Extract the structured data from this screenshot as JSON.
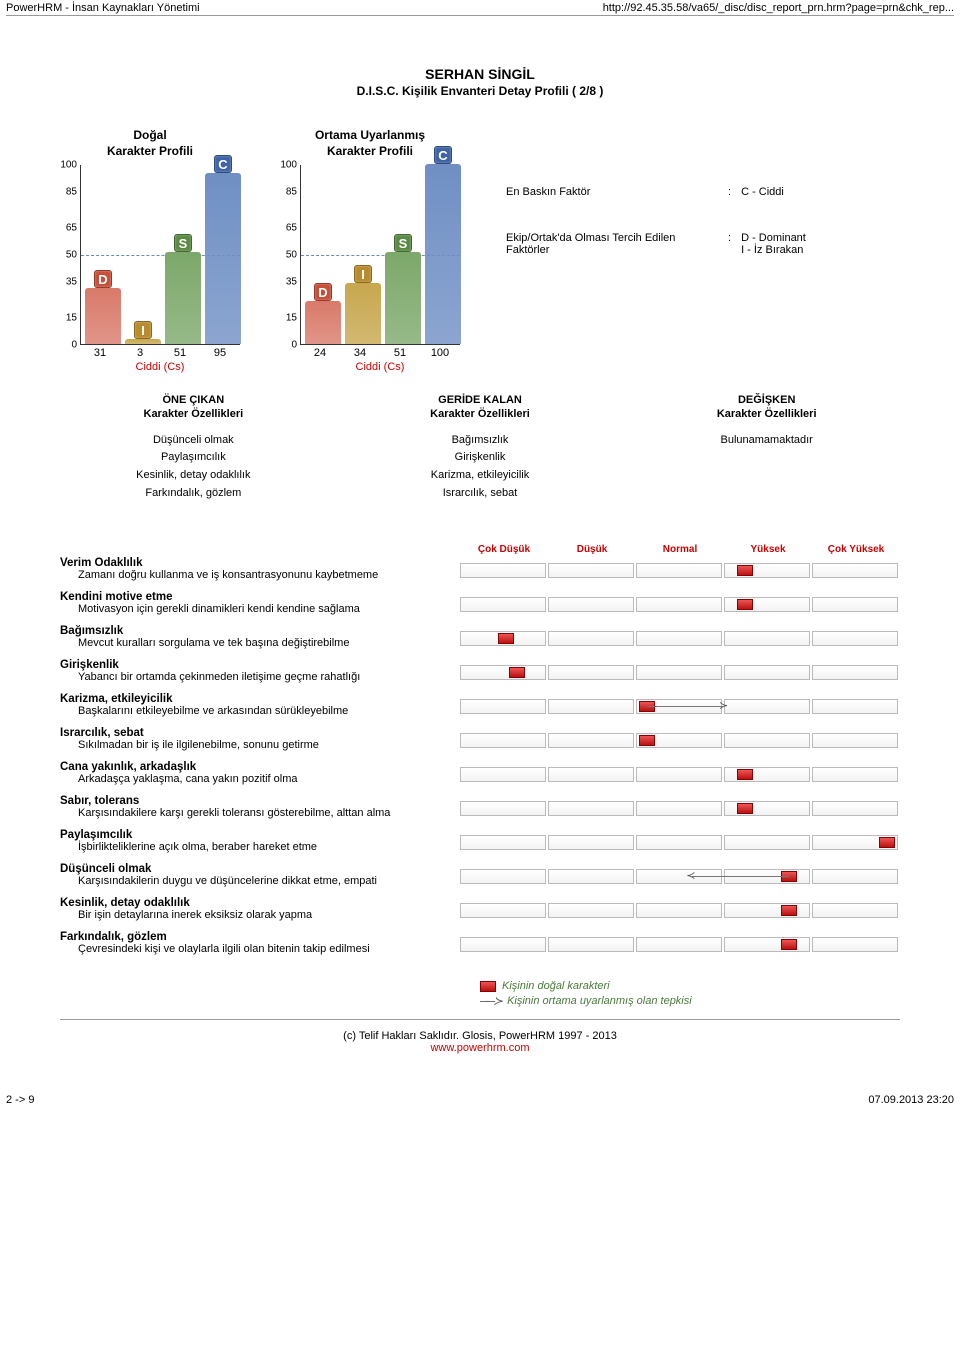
{
  "topbar": {
    "left": "PowerHRM - İnsan Kaynakları Yönetimi",
    "right": "http://92.45.35.58/va65/_disc/disc_report_prn.hrm?page=prn&chk_rep..."
  },
  "title": "SERHAN SİNGİL",
  "subtitle": "D.I.S.C. Kişilik Envanteri Detay Profili ( 2/8 )",
  "profiles": {
    "natural": {
      "heading": "Doğal\nKarakter Profili",
      "yticks": [
        "100",
        "85",
        "65",
        "50",
        "35",
        "15",
        "0"
      ],
      "dashline": 50,
      "bars": [
        {
          "label": "D",
          "value": 31,
          "bar_color": "#d97a6a",
          "label_bg": "#c74f3a"
        },
        {
          "label": "I",
          "value": 3,
          "bar_color": "#c7a74e",
          "label_bg": "#b88b2e"
        },
        {
          "label": "S",
          "value": 51,
          "bar_color": "#7ca86a",
          "label_bg": "#5a8a44"
        },
        {
          "label": "C",
          "value": 95,
          "bar_color": "#6f8fc4",
          "label_bg": "#3f63a4"
        }
      ],
      "values_below": [
        "31",
        "3",
        "51",
        "95"
      ],
      "class": "Ciddi (Cs)"
    },
    "adapted": {
      "heading": "Ortama Uyarlanmış\nKarakter Profili",
      "yticks": [
        "100",
        "85",
        "65",
        "50",
        "35",
        "15",
        "0"
      ],
      "dashline": 50,
      "bars": [
        {
          "label": "D",
          "value": 24,
          "bar_color": "#d97a6a",
          "label_bg": "#c74f3a"
        },
        {
          "label": "I",
          "value": 34,
          "bar_color": "#c7a74e",
          "label_bg": "#b88b2e"
        },
        {
          "label": "S",
          "value": 51,
          "bar_color": "#7ca86a",
          "label_bg": "#5a8a44"
        },
        {
          "label": "C",
          "value": 100,
          "bar_color": "#6f8fc4",
          "label_bg": "#3f63a4"
        }
      ],
      "values_below": [
        "24",
        "34",
        "51",
        "100"
      ],
      "class": "Ciddi (Cs)"
    }
  },
  "factors": {
    "r1_label": "En Baskın Faktör",
    "r1_sep": ":",
    "r1_value": "C - Ciddi",
    "r2_label": "Ekip/Ortak'da Olması Tercih Edilen Faktörler",
    "r2_sep": ":",
    "r2_value": "D - Dominant\nI - İz Bırakan"
  },
  "characteristics": {
    "front": {
      "heading": "ÖNE ÇIKAN\nKarakter Özellikleri",
      "items": [
        "Düşünceli olmak",
        "Paylaşımcılık",
        "Kesinlik, detay odaklılık",
        "Farkındalık, gözlem"
      ]
    },
    "behind": {
      "heading": "GERİDE KALAN\nKarakter Özellikleri",
      "items": [
        "Bağımsızlık",
        "Girişkenlik",
        "Karizma, etkileyicilik",
        "Israrcılık, sebat"
      ]
    },
    "change": {
      "heading": "DEĞİŞKEN\nKarakter Özellikleri",
      "items": [
        "Bulunamamaktadır"
      ]
    }
  },
  "traits_header": [
    "Çok Düşük",
    "Düşük",
    "Normal",
    "Yüksek",
    "Çok Yüksek"
  ],
  "traits": [
    {
      "title": "Verim Odaklılık",
      "desc": "Zamanı doğru kullanma ve iş konsantrasyonunu kaybetmeme",
      "natural": 3.6,
      "adapted": null
    },
    {
      "title": "Kendini motive etme",
      "desc": "Motivasyon için gerekli dinamikleri kendi kendine sağlama",
      "natural": 3.6,
      "adapted": null
    },
    {
      "title": "Bağımsızlık",
      "desc": "Mevcut kuralları sorgulama ve tek başına değiştirebilme",
      "natural": 1.4,
      "adapted": null
    },
    {
      "title": "Girişkenlik",
      "desc": "Yabancı bir ortamda çekinmeden iletişime geçme rahatlığı",
      "natural": 1.5,
      "adapted": null
    },
    {
      "title": "Karizma, etkileyicilik",
      "desc": "Başkalarını etkileyebilme ve arkasından sürükleyebilme",
      "natural": 2.7,
      "adapted": 3.4
    },
    {
      "title": "Israrcılık, sebat",
      "desc": "Sıkılmadan bir iş ile ilgilenebilme, sonunu getirme",
      "natural": 2.7,
      "adapted": null
    },
    {
      "title": "Cana yakınlık, arkadaşlık",
      "desc": "Arkadaşça yaklaşma, cana yakın pozitif olma",
      "natural": 3.6,
      "adapted": null
    },
    {
      "title": "Sabır, tolerans",
      "desc": "Karşısındakilere karşı gerekli toleransı gösterebilme, alttan alma",
      "natural": 3.6,
      "adapted": null
    },
    {
      "title": "Paylaşımcılık",
      "desc": "İşbirlikteliklerine açık olma, beraber hareket etme",
      "natural": 4.9,
      "adapted": null
    },
    {
      "title": "Düşünceli olmak",
      "desc": "Karşısındakilerin duygu ve düşüncelerine dikkat etme, empati",
      "natural": 4.0,
      "adapted": 3.1
    },
    {
      "title": "Kesinlik, detay odaklılık",
      "desc": "Bir işin detaylarına inerek eksiksiz olarak yapma",
      "natural": 4.0,
      "adapted": null
    },
    {
      "title": "Farkındalık, gözlem",
      "desc": "Çevresindeki kişi ve olaylarla ilgili olan bitenin takip edilmesi",
      "natural": 4.0,
      "adapted": null
    }
  ],
  "legend": {
    "natural": "Kişinin doğal karakteri",
    "adapted": "Kişinin ortama uyarlanmış olan tepkisi"
  },
  "copyright": {
    "text": "(c) Telif Hakları Saklıdır. Glosis, PowerHRM 1997 - 2013",
    "link": "www.powerhrm.com"
  },
  "footer": {
    "left": "2 -> 9",
    "right": "07.09.2013 23:20"
  }
}
